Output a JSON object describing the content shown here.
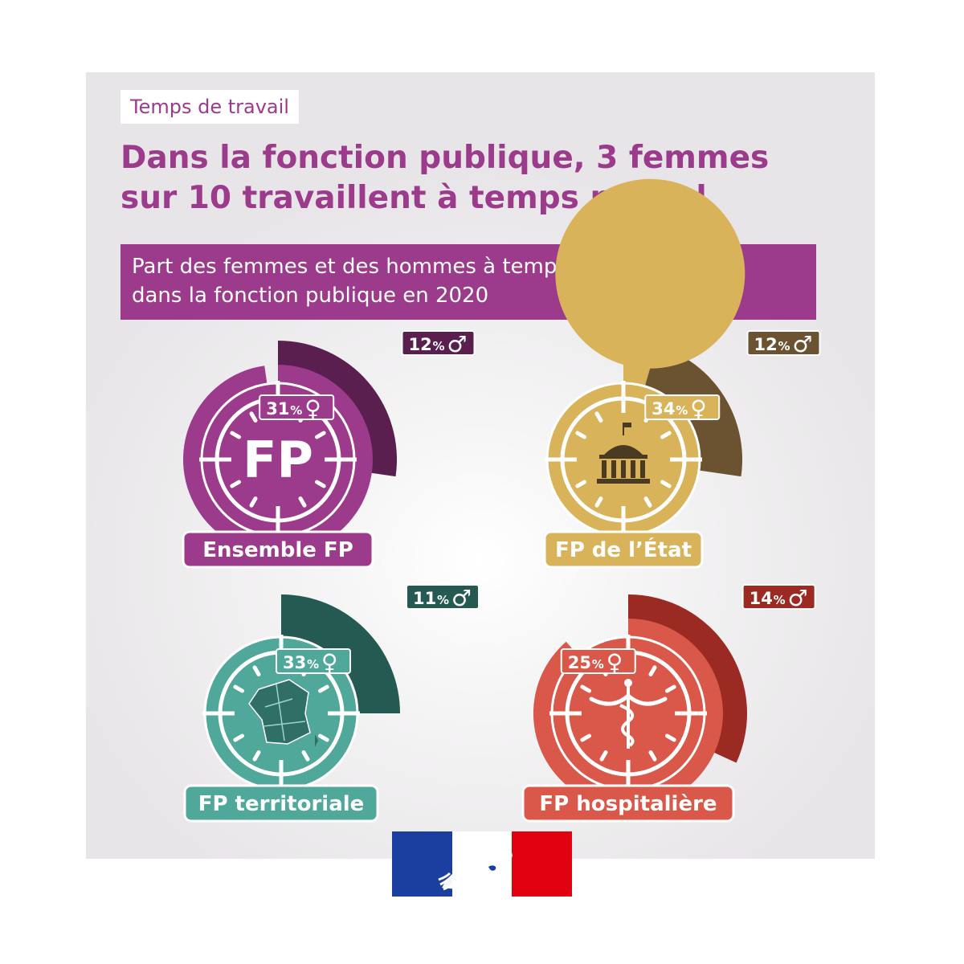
{
  "header": {
    "tag": "Temps de travail",
    "title_line1": "Dans la fonction publique, 3 femmes",
    "title_line2": "sur 10 travaillent à temps partiel",
    "subtitle_line1": "Part des femmes et des hommes à temps partiel",
    "subtitle_line2": "dans la fonction publique en 2020"
  },
  "colors": {
    "purple": "#9c3a8c",
    "gold": "#d9b35a",
    "teal": "#4fa899",
    "coral": "#d9584a"
  },
  "chart_data": {
    "type": "radial",
    "unit": "%",
    "series_symbols": {
      "men": "♂",
      "women": "♀"
    },
    "categories": [
      "Ensemble FP",
      "FP de l’État",
      "FP territoriale",
      "FP hospitalière"
    ],
    "men": [
      12,
      12,
      11,
      14
    ],
    "women": [
      31,
      34,
      33,
      25
    ],
    "items": [
      {
        "label": "Ensemble FP",
        "icon": "fp-letters-icon",
        "center_text": "FP",
        "men": 12,
        "women": 31,
        "color": "#9c3a8c",
        "dark": "#5a1f4f"
      },
      {
        "label": "FP de l’État",
        "icon": "government-building-icon",
        "center_text": "",
        "men": 12,
        "women": 34,
        "color": "#d9b35a",
        "dark": "#6b5231"
      },
      {
        "label": "FP territoriale",
        "icon": "france-map-icon",
        "center_text": "",
        "men": 11,
        "women": 33,
        "color": "#4fa899",
        "dark": "#245a52"
      },
      {
        "label": "FP hospitalière",
        "icon": "caduceus-icon",
        "center_text": "",
        "men": 14,
        "women": 25,
        "color": "#d9584a",
        "dark": "#9a2a22"
      }
    ]
  },
  "footer": {
    "logo": "marianne-logo"
  }
}
